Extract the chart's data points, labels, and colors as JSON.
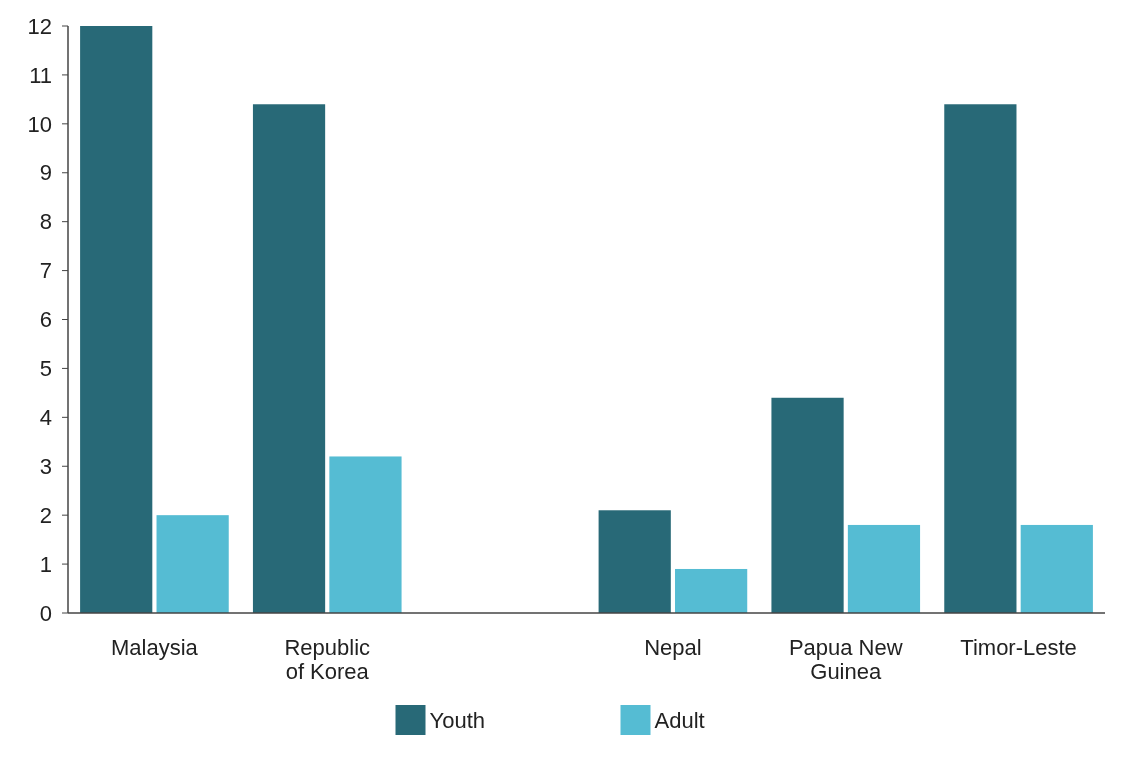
{
  "chart_data": {
    "type": "bar",
    "categories": [
      "Malaysia",
      "Republic of Korea",
      null,
      "Nepal",
      "Papua New Guinea",
      "Timor-Leste"
    ],
    "series": [
      {
        "name": "Youth",
        "color": "#286977",
        "values": [
          12,
          10.4,
          null,
          2.1,
          4.4,
          10.4
        ]
      },
      {
        "name": "Adult",
        "color": "#55bcd3",
        "values": [
          2.0,
          3.2,
          null,
          0.9,
          1.8,
          1.8
        ]
      }
    ],
    "ylim": [
      0,
      12
    ],
    "yticks": [
      0,
      1,
      2,
      3,
      4,
      5,
      6,
      7,
      8,
      9,
      10,
      11,
      12
    ],
    "grid": false,
    "legend": "bottom"
  }
}
